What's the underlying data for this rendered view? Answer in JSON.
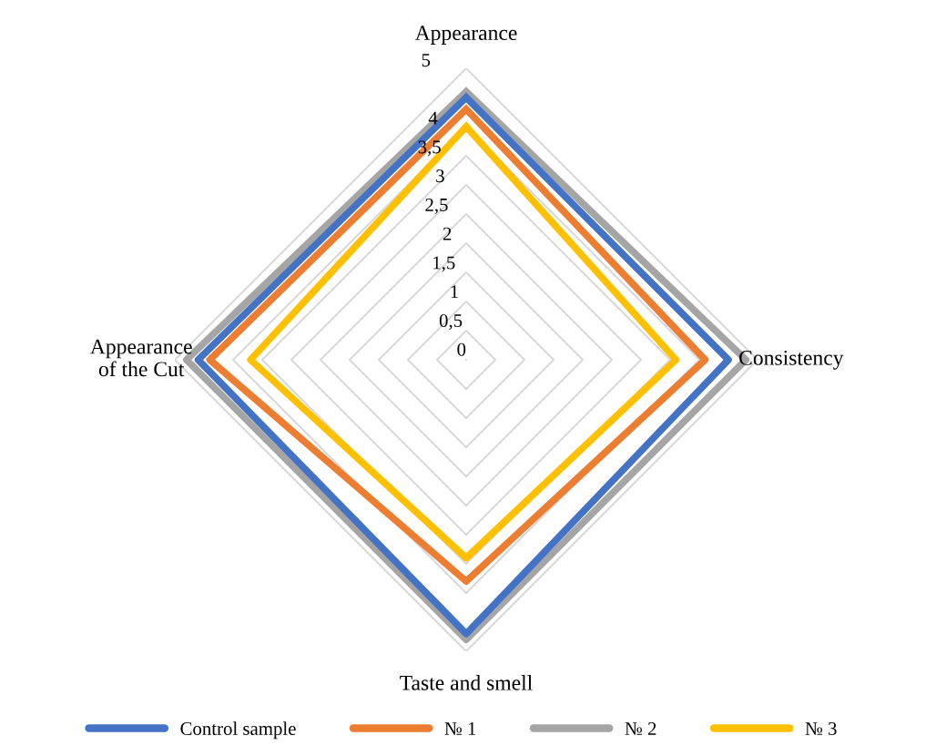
{
  "chart_data": {
    "type": "radar",
    "categories": [
      "Appearance",
      "Consistency",
      "Taste and smell",
      "Appearance of the Cut"
    ],
    "series": [
      {
        "name": "Control sample",
        "color": "#4472c4",
        "values": [
          4.5,
          4.5,
          4.7,
          4.6
        ]
      },
      {
        "name": "№ 1",
        "color": "#ed7d31",
        "values": [
          4.3,
          4.1,
          3.8,
          4.4
        ]
      },
      {
        "name": "№ 2",
        "color": "#a5a5a5",
        "values": [
          4.6,
          4.8,
          4.8,
          4.8
        ]
      },
      {
        "name": "№ 3",
        "color": "#ffc000",
        "values": [
          4.0,
          3.6,
          3.4,
          3.7
        ]
      }
    ],
    "ylim": [
      0,
      5
    ],
    "yticks": [
      {
        "value": 0,
        "label": "0"
      },
      {
        "value": 0.5,
        "label": "0,5"
      },
      {
        "value": 1,
        "label": "1"
      },
      {
        "value": 1.5,
        "label": "1,5"
      },
      {
        "value": 2,
        "label": "2"
      },
      {
        "value": 2.5,
        "label": "2,5"
      },
      {
        "value": 3,
        "label": "3"
      },
      {
        "value": 3.5,
        "label": "3,5"
      },
      {
        "value": 4,
        "label": "4"
      },
      {
        "value": 5,
        "label": "5"
      }
    ],
    "grid": true,
    "legend": "bottom",
    "marker": "none",
    "line_style": "solid"
  }
}
